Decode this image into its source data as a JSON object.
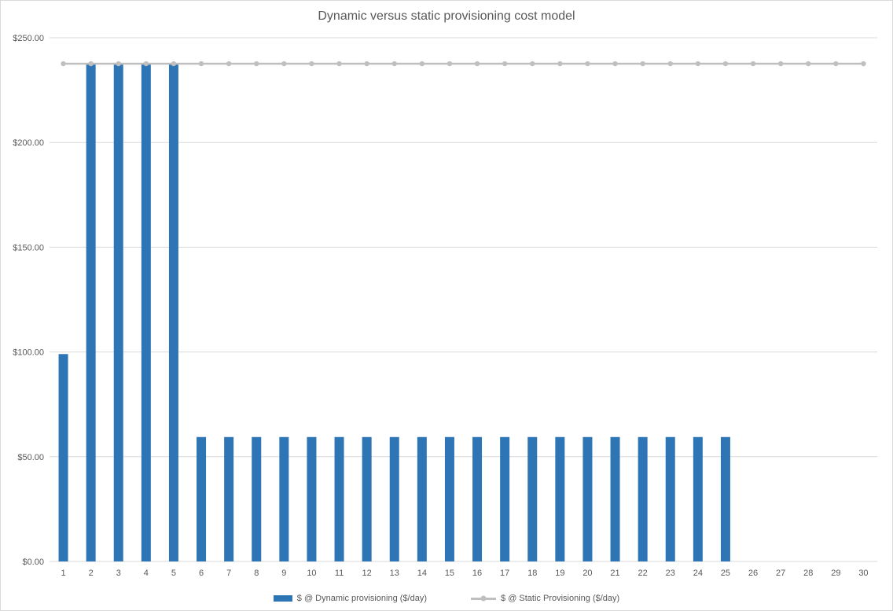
{
  "chart_data": {
    "type": "bar",
    "title": "Dynamic versus static provisioning cost model",
    "xlabel": "",
    "ylabel": "",
    "categories": [
      1,
      2,
      3,
      4,
      5,
      6,
      7,
      8,
      9,
      10,
      11,
      12,
      13,
      14,
      15,
      16,
      17,
      18,
      19,
      20,
      21,
      22,
      23,
      24,
      25,
      26,
      27,
      28,
      29,
      30
    ],
    "series": [
      {
        "name": "$ @ Dynamic provisioning ($/day)",
        "type": "bar",
        "color": "#2E75B6",
        "values": [
          99.0,
          237.6,
          237.6,
          237.6,
          237.6,
          59.4,
          59.4,
          59.4,
          59.4,
          59.4,
          59.4,
          59.4,
          59.4,
          59.4,
          59.4,
          59.4,
          59.4,
          59.4,
          59.4,
          59.4,
          59.4,
          59.4,
          59.4,
          59.4,
          59.4,
          0,
          0,
          0,
          0,
          0
        ]
      },
      {
        "name": "$ @ Static Provisioning ($/day)",
        "type": "line",
        "color": "#BFBFBF",
        "values": [
          237.6,
          237.6,
          237.6,
          237.6,
          237.6,
          237.6,
          237.6,
          237.6,
          237.6,
          237.6,
          237.6,
          237.6,
          237.6,
          237.6,
          237.6,
          237.6,
          237.6,
          237.6,
          237.6,
          237.6,
          237.6,
          237.6,
          237.6,
          237.6,
          237.6,
          237.6,
          237.6,
          237.6,
          237.6,
          237.6
        ]
      }
    ],
    "ylim": [
      0,
      250
    ],
    "y_ticks": [
      0,
      50,
      100,
      150,
      200,
      250
    ],
    "y_tick_format": "$0.00",
    "grid": true,
    "legend_position": "bottom"
  },
  "colors": {
    "gridline": "#D9D9D9",
    "axis_text": "#595959",
    "title_text": "#595959",
    "background": "#FFFFFF",
    "border": "#D9D9D9"
  }
}
